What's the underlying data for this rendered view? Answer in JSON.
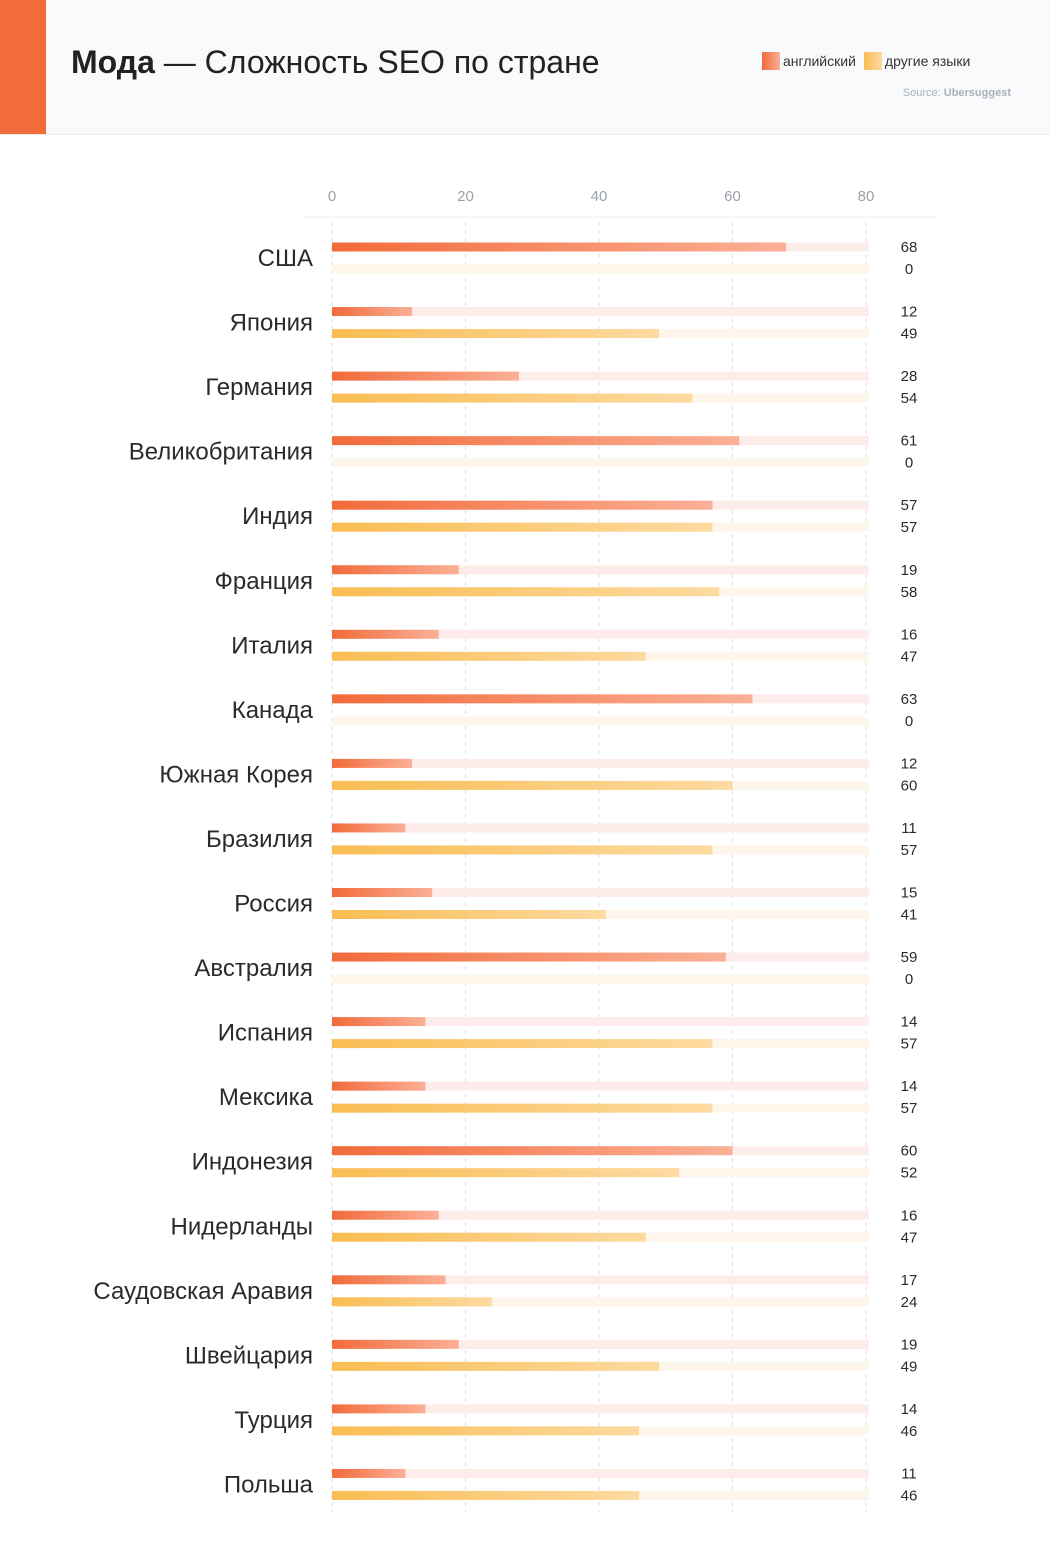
{
  "header": {
    "title_bold": "Мода",
    "title_rest": " — Сложность SEO по стране",
    "source_prefix": "Source: ",
    "source_name": "Ubersuggest"
  },
  "legend": {
    "english_label": "английский",
    "other_label": "другие языки"
  },
  "colors": {
    "accent": "#f26b3a",
    "english_start": "#f26b3a",
    "english_end": "#fbb096",
    "english_track": "#fdecea",
    "other_start": "#f9bd52",
    "other_end": "#fddaa0",
    "other_track": "#fef6ea",
    "grid": "#dcdfe3"
  },
  "chart_data": {
    "type": "bar",
    "orientation": "horizontal",
    "xlim": [
      0,
      80
    ],
    "xticks": [
      0,
      20,
      40,
      60,
      80
    ],
    "grid": true,
    "legend_position": "top-right",
    "categories": [
      "США",
      "Япония",
      "Германия",
      "Великобритания",
      "Индия",
      "Франция",
      "Италия",
      "Канада",
      "Южная Корея",
      "Бразилия",
      "Россия",
      "Австралия",
      "Испания",
      "Мексика",
      "Индонезия",
      "Нидерланды",
      "Саудовская Аравия",
      "Швейцария",
      "Турция",
      "Польша"
    ],
    "series": [
      {
        "name": "английский",
        "values": [
          68,
          12,
          28,
          61,
          57,
          19,
          16,
          63,
          12,
          11,
          15,
          59,
          14,
          14,
          60,
          16,
          17,
          19,
          14,
          11
        ]
      },
      {
        "name": "другие языки",
        "values": [
          0,
          49,
          54,
          0,
          57,
          58,
          47,
          0,
          60,
          57,
          41,
          0,
          57,
          57,
          52,
          47,
          24,
          49,
          46,
          46
        ]
      }
    ]
  }
}
